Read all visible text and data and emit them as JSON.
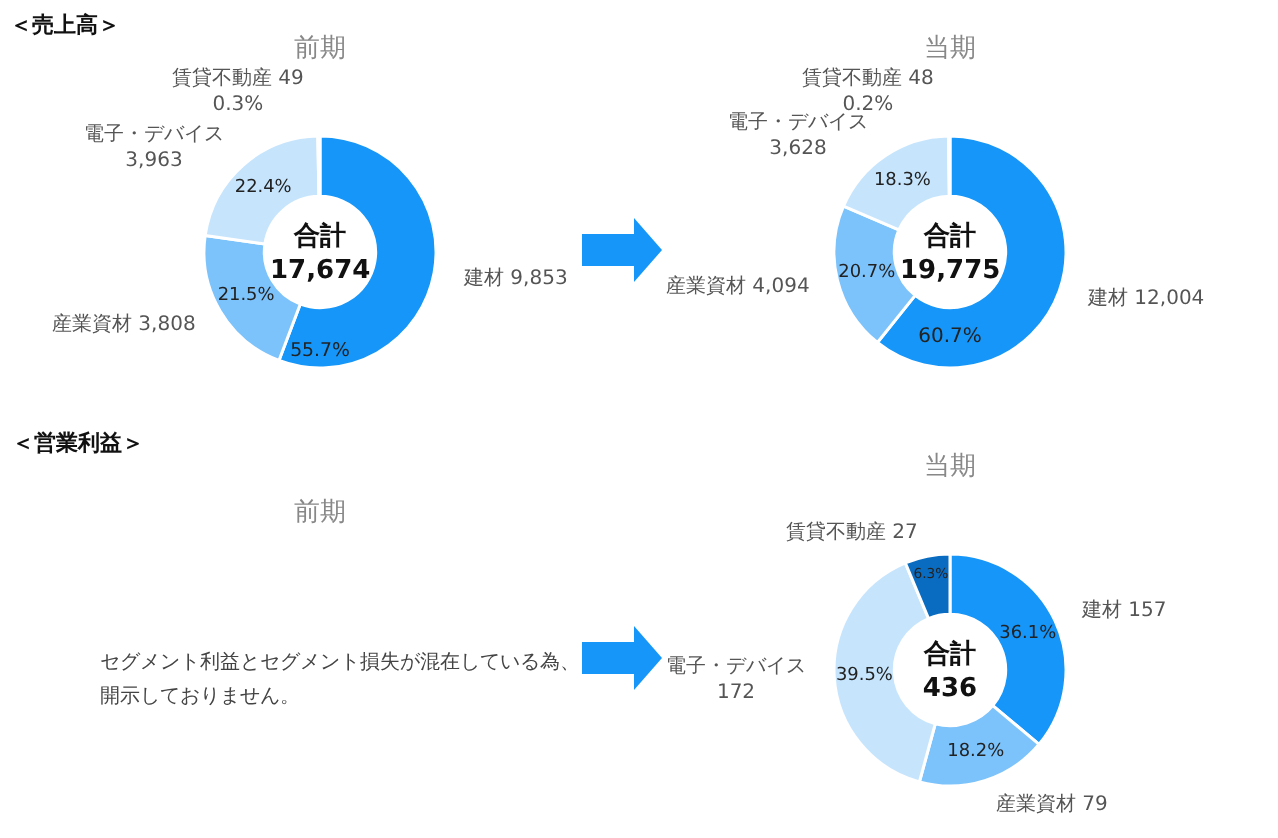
{
  "chart_data": [
    {
      "type": "donut",
      "title": "前期",
      "subtitle": "＜売上高＞",
      "annotations": [
        "合計\n17,674"
      ],
      "categories": [
        "建材 9,853",
        "産業資材 3,808",
        "電子・デバイス\n3,963",
        "賃貸不動産 49"
      ],
      "values": [
        55.7,
        21.5,
        22.4,
        0.3
      ],
      "value_labels": [
        "55.7%",
        "21.5%",
        "22.4%",
        "0.3%"
      ],
      "colors": [
        "#1596f8",
        "#7cc2fb",
        "#c6e5fd",
        "#e3f2fe"
      ]
    },
    {
      "type": "donut",
      "title": "当期",
      "annotations": [
        "合計\n19,775"
      ],
      "categories": [
        "建材 12,004",
        "産業資材 4,094",
        "電子・デバイス\n3,628",
        "賃貸不動産 48"
      ],
      "values": [
        60.7,
        20.7,
        18.3,
        0.2
      ],
      "value_labels": [
        "60.7%",
        "20.7%",
        "18.3%",
        "0.2%"
      ],
      "colors": [
        "#1596f8",
        "#7cc2fb",
        "#c6e5fd",
        "#e3f2fe"
      ]
    },
    {
      "type": "other",
      "title": "前期",
      "subtitle": "＜営業利益＞",
      "annotations": [
        "セグメント利益とセグメント損失が混在している為、開示しておりません。"
      ]
    },
    {
      "type": "donut",
      "title": "当期",
      "annotations": [
        "合計\n436"
      ],
      "categories": [
        "建材 157",
        "産業資材 79",
        "電子・デバイス\n172",
        "賃貸不動産 27"
      ],
      "values": [
        36.1,
        18.2,
        39.5,
        6.3
      ],
      "value_labels": [
        "36.1%",
        "18.2%",
        "39.5%",
        "6.3%"
      ],
      "colors": [
        "#1596f8",
        "#7cc2fb",
        "#c6e5fd",
        "#0a6cc0"
      ]
    }
  ]
}
